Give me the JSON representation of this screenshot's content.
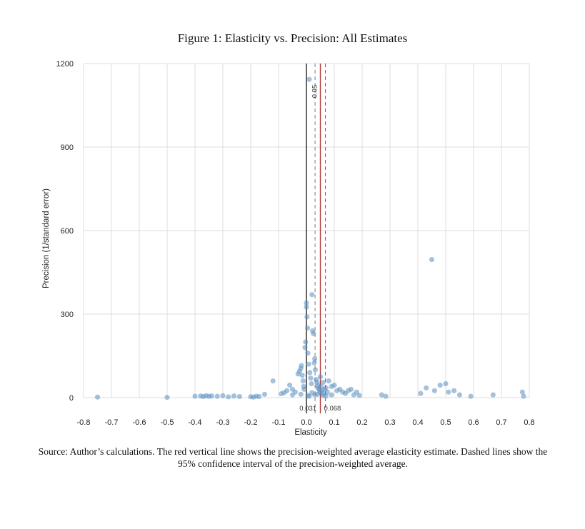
{
  "title": "Figure 1: Elasticity vs. Precision: All Estimates",
  "caption": "Source: Author’s calculations. The red vertical line shows the precision-weighted average elasticity estimate. Dashed lines show the 95% confidence interval of the precision-weighted average.",
  "chart_data": {
    "type": "scatter",
    "title": "Figure 1: Elasticity vs. Precision: All Estimates",
    "xlabel": "Elasticity",
    "ylabel": "Precision (1/standard error)",
    "xlim": [
      -0.8,
      0.8
    ],
    "ylim": [
      0,
      1200
    ],
    "xticks": [
      "-0.8",
      "-0.7",
      "-0.6",
      "-0.5",
      "-0.4",
      "-0.3",
      "-0.2",
      "-0.1",
      "0.0",
      "0.1",
      "0.2",
      "0.3",
      "0.4",
      "0.5",
      "0.6",
      "0.7",
      "0.8"
    ],
    "yticks": [
      "0",
      "300",
      "600",
      "900",
      "1200"
    ],
    "grid": true,
    "point_color": "#5b8fbf",
    "reference_lines": [
      {
        "x": 0.0,
        "style": "solid",
        "color": "#222222"
      },
      {
        "x": 0.05,
        "style": "solid",
        "color": "#b03a3a",
        "label": "0.05"
      },
      {
        "x": 0.031,
        "style": "dashed",
        "color": "#888888",
        "label": "0.031"
      },
      {
        "x": 0.068,
        "style": "dashed",
        "color": "#c0504d",
        "label": "0.068"
      }
    ],
    "points": [
      [
        -0.75,
        2
      ],
      [
        -0.5,
        1
      ],
      [
        -0.4,
        5
      ],
      [
        -0.38,
        6
      ],
      [
        -0.37,
        4
      ],
      [
        -0.36,
        7
      ],
      [
        -0.35,
        5
      ],
      [
        -0.34,
        6
      ],
      [
        -0.32,
        5
      ],
      [
        -0.3,
        7
      ],
      [
        -0.28,
        3
      ],
      [
        -0.26,
        6
      ],
      [
        -0.24,
        4
      ],
      [
        -0.2,
        3
      ],
      [
        -0.19,
        2
      ],
      [
        -0.18,
        5
      ],
      [
        -0.17,
        4
      ],
      [
        -0.15,
        12
      ],
      [
        -0.12,
        60
      ],
      [
        -0.09,
        14
      ],
      [
        -0.08,
        18
      ],
      [
        -0.07,
        25
      ],
      [
        -0.06,
        45
      ],
      [
        -0.05,
        30
      ],
      [
        -0.04,
        20
      ],
      [
        -0.03,
        85
      ],
      [
        -0.025,
        95
      ],
      [
        -0.02,
        105
      ],
      [
        -0.018,
        115
      ],
      [
        -0.015,
        80
      ],
      [
        -0.012,
        60
      ],
      [
        -0.01,
        40
      ],
      [
        -0.008,
        30
      ],
      [
        -0.005,
        180
      ],
      [
        -0.003,
        200
      ],
      [
        0.0,
        340
      ],
      [
        0.0,
        325
      ],
      [
        0.002,
        290
      ],
      [
        0.004,
        250
      ],
      [
        0.005,
        160
      ],
      [
        0.008,
        120
      ],
      [
        0.01,
        1143
      ],
      [
        0.012,
        90
      ],
      [
        0.015,
        70
      ],
      [
        0.018,
        50
      ],
      [
        0.02,
        370
      ],
      [
        0.022,
        240
      ],
      [
        0.025,
        230
      ],
      [
        0.028,
        125
      ],
      [
        0.03,
        140
      ],
      [
        0.032,
        100
      ],
      [
        0.035,
        65
      ],
      [
        0.038,
        55
      ],
      [
        0.04,
        45
      ],
      [
        0.042,
        35
      ],
      [
        0.045,
        30
      ],
      [
        0.048,
        20
      ],
      [
        0.05,
        75
      ],
      [
        0.052,
        40
      ],
      [
        0.055,
        25
      ],
      [
        0.058,
        15
      ],
      [
        0.06,
        55
      ],
      [
        0.065,
        30
      ],
      [
        0.07,
        35
      ],
      [
        0.075,
        20
      ],
      [
        0.08,
        60
      ],
      [
        0.09,
        40
      ],
      [
        0.1,
        45
      ],
      [
        0.11,
        25
      ],
      [
        0.12,
        30
      ],
      [
        0.13,
        20
      ],
      [
        0.14,
        15
      ],
      [
        0.15,
        25
      ],
      [
        0.16,
        30
      ],
      [
        0.17,
        10
      ],
      [
        0.18,
        20
      ],
      [
        0.19,
        8
      ],
      [
        0.27,
        10
      ],
      [
        0.285,
        5
      ],
      [
        0.41,
        15
      ],
      [
        0.43,
        35
      ],
      [
        0.45,
        496
      ],
      [
        0.46,
        25
      ],
      [
        0.48,
        45
      ],
      [
        0.5,
        50
      ],
      [
        0.51,
        20
      ],
      [
        0.53,
        25
      ],
      [
        0.55,
        10
      ],
      [
        0.59,
        5
      ],
      [
        0.67,
        10
      ],
      [
        0.775,
        20
      ],
      [
        0.78,
        5
      ],
      [
        0.03,
        10
      ],
      [
        0.04,
        12
      ],
      [
        0.06,
        8
      ],
      [
        -0.05,
        10
      ],
      [
        0.01,
        5
      ],
      [
        0.02,
        18
      ],
      [
        0.005,
        8
      ],
      [
        -0.02,
        12
      ],
      [
        0.07,
        6
      ],
      [
        0.09,
        10
      ]
    ]
  }
}
